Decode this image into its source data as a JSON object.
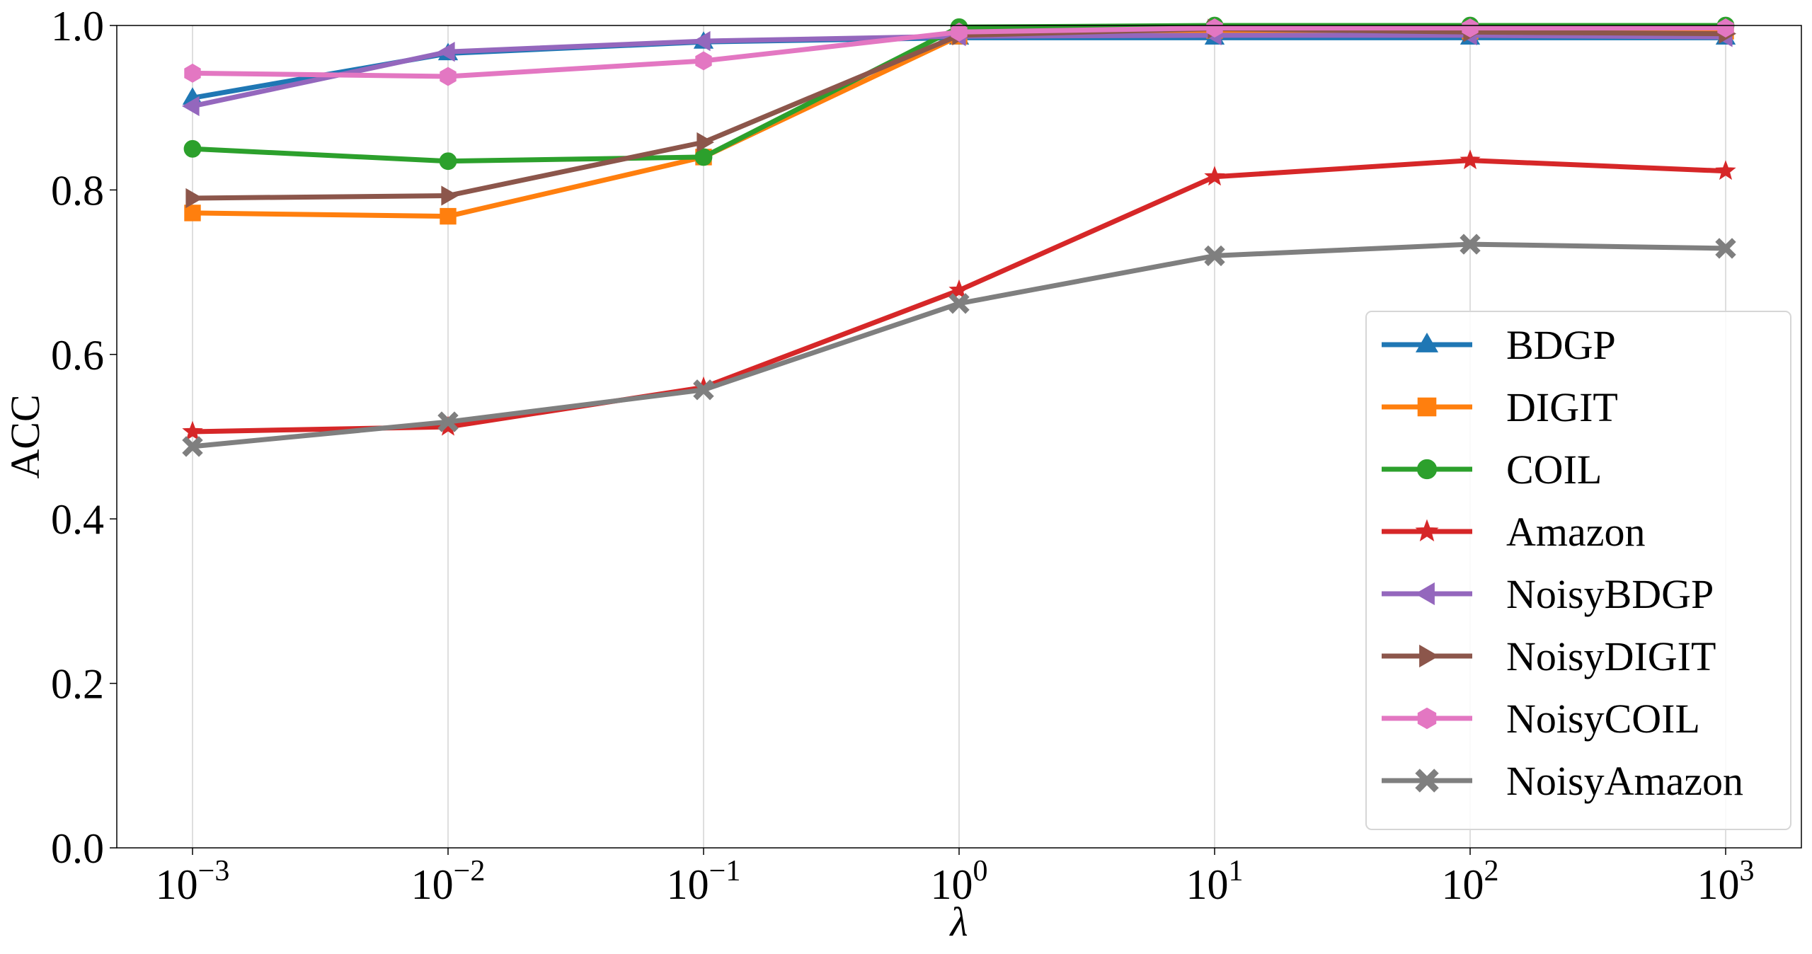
{
  "chart_data": {
    "type": "line",
    "title": "",
    "xlabel": "λ",
    "ylabel": "ACC",
    "x_scale": "log",
    "x": [
      0.001,
      0.01,
      0.1,
      1,
      10,
      100,
      1000
    ],
    "x_tick_labels": [
      {
        "base": "10",
        "exp": "−3"
      },
      {
        "base": "10",
        "exp": "−2"
      },
      {
        "base": "10",
        "exp": "−1"
      },
      {
        "base": "10",
        "exp": "0"
      },
      {
        "base": "10",
        "exp": "1"
      },
      {
        "base": "10",
        "exp": "2"
      },
      {
        "base": "10",
        "exp": "3"
      }
    ],
    "ylim": [
      0.0,
      1.0
    ],
    "y_ticks": [
      0.0,
      0.2,
      0.4,
      0.6,
      0.8,
      1.0
    ],
    "y_tick_labels": [
      "0.0",
      "0.2",
      "0.4",
      "0.6",
      "0.8",
      "1.0"
    ],
    "grid": "vertical lines at x ticks",
    "legend_position": "lower-right",
    "series": [
      {
        "name": "BDGP",
        "color": "#1f77b4",
        "marker": "triangle-up",
        "values": [
          0.912,
          0.966,
          0.98,
          0.985,
          0.985,
          0.985,
          0.985
        ]
      },
      {
        "name": "DIGIT",
        "color": "#ff7f0e",
        "marker": "square",
        "values": [
          0.772,
          0.768,
          0.84,
          0.987,
          0.994,
          0.993,
          0.993
        ]
      },
      {
        "name": "COIL",
        "color": "#2ca02c",
        "marker": "circle",
        "values": [
          0.85,
          0.835,
          0.84,
          0.998,
          1.0,
          1.0,
          1.0
        ]
      },
      {
        "name": "Amazon",
        "color": "#d62728",
        "marker": "star",
        "values": [
          0.506,
          0.512,
          0.56,
          0.678,
          0.816,
          0.836,
          0.823
        ]
      },
      {
        "name": "NoisyBDGP",
        "color": "#9467bd",
        "marker": "triangle-left",
        "values": [
          0.902,
          0.968,
          0.981,
          0.987,
          0.988,
          0.988,
          0.986
        ]
      },
      {
        "name": "NoisyDIGIT",
        "color": "#8c564b",
        "marker": "triangle-right",
        "values": [
          0.79,
          0.793,
          0.858,
          0.988,
          0.996,
          0.992,
          0.99
        ]
      },
      {
        "name": "NoisyCOIL",
        "color": "#e377c2",
        "marker": "hexagon",
        "values": [
          0.942,
          0.938,
          0.957,
          0.992,
          0.997,
          0.997,
          0.997
        ]
      },
      {
        "name": "NoisyAmazon",
        "color": "#7f7f7f",
        "marker": "x-filled",
        "values": [
          0.488,
          0.518,
          0.557,
          0.662,
          0.72,
          0.734,
          0.729
        ]
      }
    ]
  }
}
